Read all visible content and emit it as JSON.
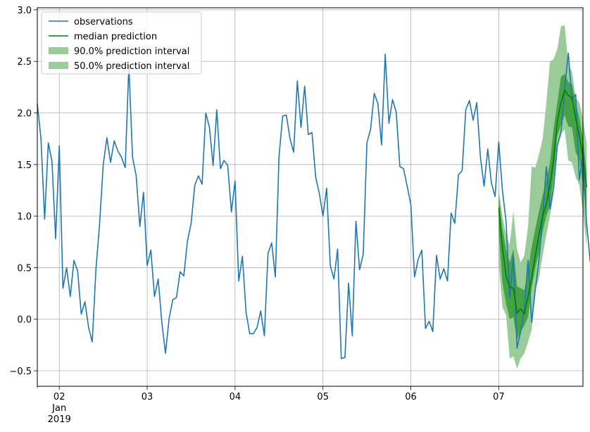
{
  "chart_data": {
    "type": "line",
    "title": "",
    "xlabel": "",
    "ylabel": "",
    "x_unit": "days since 2019-01-01 00:00",
    "xlim": [
      1.75,
      7.9583
    ],
    "ylim": [
      -0.65,
      3.02
    ],
    "grid": true,
    "legend_placement": "top-left",
    "x_ticks": [
      {
        "x": 2,
        "label": "02",
        "sub": [
          "Jan",
          "2019"
        ]
      },
      {
        "x": 3,
        "label": "03"
      },
      {
        "x": 4,
        "label": "04"
      },
      {
        "x": 5,
        "label": "05"
      },
      {
        "x": 6,
        "label": "06"
      },
      {
        "x": 7,
        "label": "07"
      }
    ],
    "x_minor_ticks": [
      1.75
    ],
    "y_ticks": [
      {
        "y": -0.5,
        "label": "−0.5"
      },
      {
        "y": 0.0,
        "label": "0.0"
      },
      {
        "y": 0.5,
        "label": "0.5"
      },
      {
        "y": 1.0,
        "label": "1.0"
      },
      {
        "y": 1.5,
        "label": "1.5"
      },
      {
        "y": 2.0,
        "label": "2.0"
      },
      {
        "y": 2.5,
        "label": "2.5"
      },
      {
        "y": 3.0,
        "label": "3.0"
      }
    ],
    "observations": {
      "name": "observations",
      "color": "#1f77b4",
      "x_start": 1.75,
      "x_step": 0.041667,
      "values": [
        2.09,
        1.75,
        0.97,
        1.71,
        1.53,
        0.78,
        1.68,
        0.3,
        0.5,
        0.22,
        0.57,
        0.47,
        0.05,
        0.17,
        -0.08,
        -0.22,
        0.48,
        0.92,
        1.5,
        1.76,
        1.52,
        1.73,
        1.63,
        1.57,
        1.47,
        2.46,
        1.57,
        1.39,
        0.9,
        1.23,
        0.52,
        0.67,
        0.22,
        0.39,
        -0.03,
        -0.33,
        0.01,
        0.19,
        0.21,
        0.46,
        0.42,
        0.76,
        0.93,
        1.3,
        1.39,
        1.31,
        2.0,
        1.86,
        1.49,
        2.03,
        1.46,
        1.54,
        1.49,
        1.04,
        1.34,
        0.37,
        0.61,
        0.07,
        -0.14,
        -0.14,
        -0.08,
        0.08,
        -0.16,
        0.64,
        0.74,
        0.41,
        1.58,
        1.97,
        1.98,
        1.75,
        1.62,
        2.31,
        1.86,
        2.26,
        1.79,
        1.81,
        1.38,
        1.22,
        1.0,
        1.27,
        0.52,
        0.39,
        0.68,
        -0.38,
        -0.37,
        0.35,
        -0.16,
        0.95,
        0.48,
        0.63,
        1.71,
        1.84,
        2.19,
        2.09,
        1.69,
        2.57,
        1.9,
        2.13,
        2.01,
        1.48,
        1.46,
        1.29,
        1.11,
        0.41,
        0.58,
        0.67,
        -0.09,
        -0.02,
        -0.12,
        0.62,
        0.39,
        0.49,
        0.37,
        1.03,
        0.93,
        1.4,
        1.44,
        2.03,
        2.12,
        1.93,
        2.1,
        1.57,
        1.29,
        1.65,
        1.32,
        1.19,
        1.72,
        1.25,
        0.95,
        0.21,
        0.61,
        -0.28,
        -0.12,
        0.11,
        0.57,
        -0.03,
        0.29,
        0.58,
        1.0,
        1.48,
        1.07,
        1.28,
        1.68,
        1.81,
        2.24,
        2.58,
        2.13,
        2.18,
        1.35,
        1.61,
        0.93,
        0.55
      ]
    },
    "forecast": {
      "x_start": 7.0,
      "x_step": 0.041667,
      "median": {
        "name": "median prediction",
        "color": "#008000",
        "values": [
          1.08,
          0.7,
          0.42,
          0.31,
          0.3,
          0.06,
          0.1,
          0.05,
          0.22,
          0.4,
          0.62,
          0.82,
          1.0,
          1.12,
          1.3,
          1.55,
          1.92,
          2.1,
          2.22,
          2.17,
          2.15,
          1.95,
          1.78,
          1.58,
          1.28
        ]
      },
      "interval_90": {
        "name": "90.0% prediction interval",
        "color": "#99cc99",
        "low": [
          0.55,
          0.12,
          0.04,
          -0.38,
          -0.36,
          -0.48,
          -0.38,
          -0.33,
          -0.22,
          -0.1,
          0.28,
          0.4,
          0.62,
          0.82,
          1.0,
          1.22,
          1.7,
          1.8,
          1.84,
          1.54,
          1.52,
          1.38,
          1.3,
          1.05,
          0.7
        ],
        "high": [
          1.27,
          1.0,
          0.82,
          0.72,
          1.05,
          0.68,
          0.55,
          0.62,
          0.9,
          1.48,
          1.47,
          1.6,
          1.75,
          2.1,
          2.5,
          2.52,
          2.62,
          2.84,
          2.85,
          2.48,
          2.4,
          2.15,
          2.1,
          1.95,
          1.7
        ]
      },
      "interval_50": {
        "name": "50.0% prediction interval",
        "color": "#007f00",
        "low": [
          0.85,
          0.36,
          0.15,
          0.0,
          0.02,
          -0.2,
          -0.12,
          -0.06,
          0.02,
          0.3,
          0.5,
          0.65,
          0.85,
          1.0,
          1.1,
          1.38,
          1.78,
          1.88,
          1.98,
          1.87,
          1.86,
          1.62,
          1.55,
          1.3,
          1.02
        ],
        "high": [
          1.2,
          0.88,
          0.68,
          0.55,
          0.68,
          0.32,
          0.3,
          0.28,
          0.48,
          0.7,
          0.88,
          1.05,
          1.2,
          1.35,
          1.52,
          1.85,
          2.1,
          2.35,
          2.38,
          2.3,
          2.28,
          2.1,
          1.95,
          1.75,
          1.42
        ]
      }
    },
    "legend": [
      {
        "label": "observations",
        "kind": "line",
        "color": "#1f77b4"
      },
      {
        "label": "median prediction",
        "kind": "line",
        "color": "#008000"
      },
      {
        "label": "90.0% prediction interval",
        "kind": "patch",
        "color": "#99cc99"
      },
      {
        "label": "50.0% prediction interval",
        "kind": "patch",
        "color": "#99cc99"
      }
    ]
  }
}
